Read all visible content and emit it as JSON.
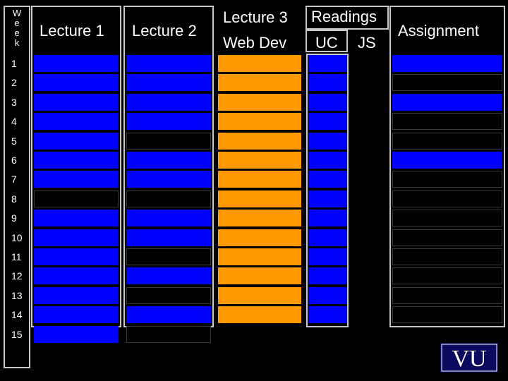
{
  "headers": {
    "week_letters": [
      "W",
      "e",
      "e",
      "k"
    ],
    "lecture1": "Lecture 1",
    "lecture2": "Lecture 2",
    "lecture3": "Lecture 3",
    "lecture3_sub": "Web Dev",
    "readings": "Readings",
    "readings_uc": "UC",
    "readings_js": "JS",
    "assignment": "Assignment"
  },
  "weeks": [
    "1",
    "2",
    "3",
    "4",
    "5",
    "6",
    "7",
    "8",
    "9",
    "10",
    "11",
    "12",
    "13",
    "14",
    "15"
  ],
  "colors": {
    "blue": "#0000ff",
    "orange": "#ff9900",
    "black": "#000000",
    "border": "#c8c8c8"
  },
  "schedule": {
    "lecture1": [
      "blue",
      "blue",
      "blue",
      "blue",
      "blue",
      "blue",
      "blue",
      "black",
      "blue",
      "blue",
      "blue",
      "blue",
      "blue",
      "blue",
      "blue"
    ],
    "lecture2": [
      "blue",
      "blue",
      "blue",
      "blue",
      "black",
      "blue",
      "blue",
      "black",
      "blue",
      "blue",
      "black",
      "blue",
      "black",
      "blue",
      "black"
    ],
    "lecture3": [
      "orange",
      "orange",
      "orange",
      "orange",
      "orange",
      "orange",
      "orange",
      "orange",
      "orange",
      "orange",
      "orange",
      "orange",
      "orange",
      "orange"
    ],
    "readings_uc": [
      "blue",
      "blue",
      "blue",
      "blue",
      "blue",
      "blue",
      "blue",
      "blue",
      "blue",
      "blue",
      "blue",
      "blue",
      "blue",
      "blue"
    ],
    "assignment": [
      "blue",
      "black",
      "blue",
      "black",
      "black",
      "blue",
      "black",
      "black",
      "black",
      "black",
      "black",
      "black",
      "black",
      "black"
    ]
  },
  "logo": {
    "text": "VU"
  }
}
